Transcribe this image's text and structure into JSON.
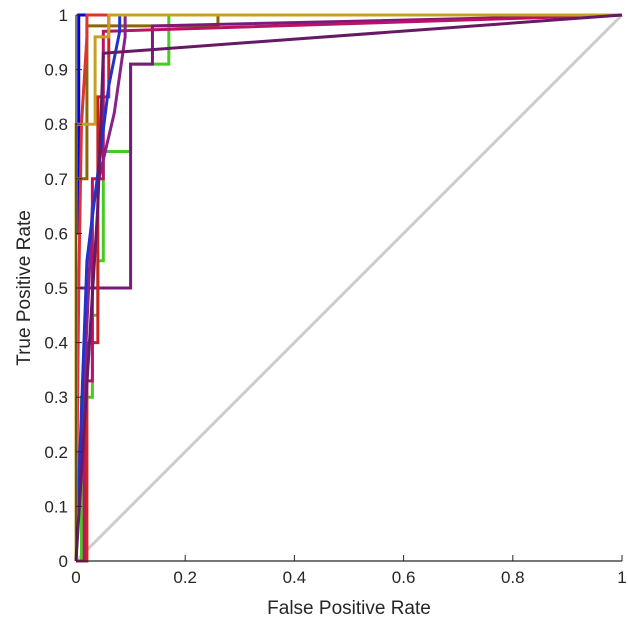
{
  "chart_data": {
    "type": "line",
    "title": "",
    "xlabel": "False Positive Rate",
    "ylabel": "True Positive Rate",
    "xlim": [
      0,
      1
    ],
    "ylim": [
      0,
      1
    ],
    "x_ticks": [
      "0",
      "0.2",
      "0.4",
      "0.6",
      "0.8",
      "1"
    ],
    "y_ticks": [
      "0",
      "0.1",
      "0.2",
      "0.3",
      "0.4",
      "0.5",
      "0.6",
      "0.7",
      "0.8",
      "0.9",
      "1"
    ],
    "grid": false,
    "legend": "none",
    "diagonal_reference": {
      "color": "#cccccc",
      "x": [
        0,
        1
      ],
      "y": [
        0,
        1
      ]
    },
    "series": [
      {
        "color": "#0000ee",
        "x": [
          0,
          0,
          0.005,
          0.005,
          1
        ],
        "y": [
          0,
          0.6,
          0.6,
          1,
          1
        ]
      },
      {
        "color": "#8b6508",
        "x": [
          0,
          0,
          0.02,
          0.02,
          0.26,
          0.26,
          1
        ],
        "y": [
          0,
          0.7,
          0.7,
          0.98,
          0.98,
          1,
          1
        ]
      },
      {
        "color": "#44cc22",
        "x": [
          0,
          0.01,
          0.01,
          0.03,
          0.03,
          0.04,
          0.04,
          0.05,
          0.05,
          0.1,
          0.1,
          0.17,
          0.17,
          1
        ],
        "y": [
          0,
          0,
          0.3,
          0.3,
          0.45,
          0.45,
          0.55,
          0.55,
          0.75,
          0.75,
          0.91,
          0.91,
          1,
          1
        ]
      },
      {
        "color": "#7a1a7a",
        "x": [
          0,
          0,
          0.1,
          0.1,
          0.14,
          0.14,
          1
        ],
        "y": [
          0,
          0.5,
          0.5,
          0.91,
          0.91,
          0.98,
          1
        ]
      },
      {
        "color": "#cc2222",
        "x": [
          0,
          0.02,
          0.02,
          0.04,
          0.04,
          0.06,
          0.06,
          1
        ],
        "y": [
          0,
          0,
          0.4,
          0.4,
          0.85,
          0.85,
          1,
          1
        ]
      },
      {
        "color": "#bb1166",
        "x": [
          0,
          0.015,
          0.015,
          0.03,
          0.03,
          0.05,
          0.05,
          1
        ],
        "y": [
          0,
          0,
          0.33,
          0.33,
          0.7,
          0.7,
          0.97,
          1
        ]
      },
      {
        "color": "#882288",
        "x": [
          0,
          0.03,
          0.03,
          0.07,
          0.07,
          0.09,
          0.09,
          1
        ],
        "y": [
          0,
          0.65,
          0.65,
          0.82,
          0.82,
          0.96,
          1,
          1
        ]
      },
      {
        "color": "#dd3333",
        "x": [
          0,
          0.005,
          0.005,
          0.01,
          0.01,
          0.02,
          0.02,
          1
        ],
        "y": [
          0,
          0.5,
          0.5,
          0.8,
          0.8,
          0.96,
          1,
          1
        ]
      },
      {
        "color": "#2233cc",
        "x": [
          0,
          0.02,
          0.02,
          0.06,
          0.06,
          0.08,
          0.08,
          1
        ],
        "y": [
          0,
          0.55,
          0.55,
          0.87,
          0.87,
          0.97,
          1,
          1
        ]
      },
      {
        "color": "#c8a020",
        "x": [
          0,
          0,
          0.035,
          0.035,
          0.06,
          0.06,
          1
        ],
        "y": [
          0,
          0.8,
          0.8,
          0.96,
          0.96,
          1,
          1
        ]
      },
      {
        "color": "#661a66",
        "x": [
          0,
          0.04,
          0.04,
          0.05,
          0.05,
          1
        ],
        "y": [
          0,
          0.65,
          0.65,
          0.93,
          0.93,
          1
        ]
      }
    ]
  }
}
